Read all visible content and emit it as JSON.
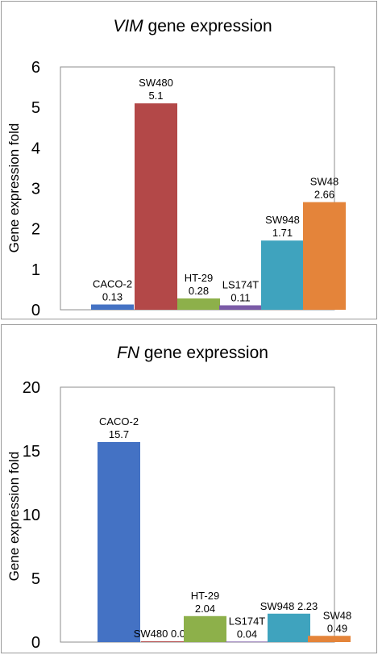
{
  "chart_data": [
    {
      "type": "bar",
      "title_italic": "VIM",
      "title_rest": " gene expression",
      "ylabel": "Gene expression fold",
      "ylim": [
        0,
        6
      ],
      "yticks": [
        "0",
        "1",
        "2",
        "3",
        "4",
        "5",
        "6"
      ],
      "categories": [
        "CACO-2",
        "SW480",
        "HT-29",
        "LS174T",
        "SW948",
        "SW48"
      ],
      "values": [
        0.13,
        5.1,
        0.28,
        0.11,
        1.71,
        2.66
      ],
      "value_labels": [
        "0.13",
        "5.1",
        "0.28",
        "0.11",
        "1.71",
        "2.66"
      ],
      "colors": [
        "#4472C4",
        "#B34848",
        "#8DB04A",
        "#7B5BA7",
        "#3FA3BE",
        "#E4843A"
      ],
      "grid": false
    },
    {
      "type": "bar",
      "title_italic": "FN",
      "title_rest": " gene expression",
      "ylabel": "Gene expression fold",
      "ylim": [
        0,
        20
      ],
      "yticks": [
        "0",
        "5",
        "10",
        "15",
        "20"
      ],
      "categories": [
        "CACO-2",
        "SW480",
        "HT-29",
        "LS174T",
        "SW948",
        "SW48"
      ],
      "values": [
        15.7,
        0.06,
        2.04,
        0.04,
        2.23,
        0.49
      ],
      "value_labels": [
        "15.7",
        "0.06",
        "2.04",
        "0.04",
        "2.23",
        "0.49"
      ],
      "colors": [
        "#4472C4",
        "#B34848",
        "#8DB04A",
        "#7B5BA7",
        "#3FA3BE",
        "#E4843A"
      ],
      "grid": false
    }
  ]
}
